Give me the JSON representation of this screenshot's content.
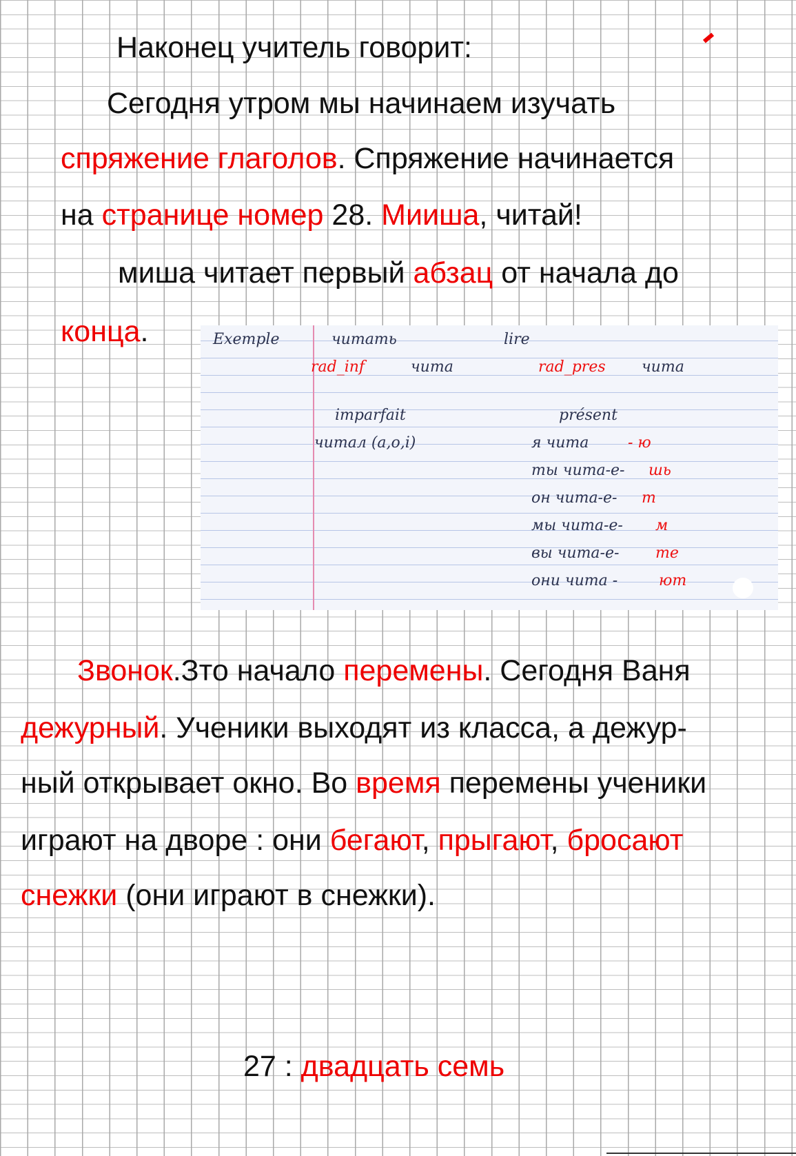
{
  "lines": [
    [
      {
        "text": "Наконец учитель говорит:"
      }
    ],
    [
      {
        "text": "Сегодня утром мы начинаем изучать"
      }
    ],
    [
      {
        "text": "спряжение глаголов",
        "highlight": true
      },
      {
        "text": ". Спряжение начинается"
      }
    ],
    [
      {
        "text": "на "
      },
      {
        "text": "странице номер",
        "highlight": true
      },
      {
        "text": " 28. "
      },
      {
        "text": "Мииша",
        "highlight": true
      },
      {
        "text": ", читай!"
      }
    ],
    [
      {
        "text": "миша читает первый "
      },
      {
        "text": "абзац",
        "highlight": true
      },
      {
        "text": " от начала до"
      }
    ],
    [
      {
        "text": "конца",
        "highlight": true
      },
      {
        "text": "."
      }
    ],
    [
      {
        "text": "Звонок",
        "highlight": true
      },
      {
        "text": ".Зто начало "
      },
      {
        "text": "перемены",
        "highlight": true
      },
      {
        "text": ". Сегодня Ваня"
      }
    ],
    [
      {
        "text": "дежурный",
        "highlight": true
      },
      {
        "text": ". Ученики выходят из класса, а дежур-"
      }
    ],
    [
      {
        "text": "ный открывает окно. Во "
      },
      {
        "text": "время",
        "highlight": true
      },
      {
        "text": " перемены ученики"
      }
    ],
    [
      {
        "text": "играют на дворе : они "
      },
      {
        "text": "бегают",
        "highlight": true
      },
      {
        "text": ", "
      },
      {
        "text": "прыгают",
        "highlight": true
      },
      {
        "text": ", "
      },
      {
        "text": "бросают",
        "highlight": true
      }
    ],
    [
      {
        "text": "снежки",
        "highlight": true
      },
      {
        "text": " (они играют в снежки)."
      }
    ],
    [
      {
        "text": "27 : "
      },
      {
        "text": "двадцать семь",
        "highlight": true
      }
    ]
  ],
  "note_card": [
    [
      {
        "text": "Exemple"
      },
      {
        "text": "читать"
      },
      {
        "text": "lire"
      }
    ],
    [
      {
        "text": "rad_inf",
        "highlight": true
      },
      {
        "text": "чита"
      },
      {
        "text": "rad_pres",
        "highlight": true
      },
      {
        "text": "чита"
      }
    ],
    [
      {
        "text": "imparfait"
      },
      {
        "text": "présent"
      }
    ],
    [
      {
        "text": "читал (a,o,i)"
      },
      {
        "text": "я чита"
      },
      {
        "text": "- ю",
        "highlight": true
      }
    ],
    [
      {
        "text": "ты чита-е-"
      },
      {
        "text": "шь",
        "highlight": true
      }
    ],
    [
      {
        "text": "он чита-е-"
      },
      {
        "text": "т",
        "highlight": true
      }
    ],
    [
      {
        "text": "мы чита-е-"
      },
      {
        "text": "м",
        "highlight": true
      }
    ],
    [
      {
        "text": "вы чита-е-"
      },
      {
        "text": "те",
        "highlight": true
      }
    ],
    [
      {
        "text": "они чита -"
      },
      {
        "text": "ют",
        "highlight": true
      }
    ]
  ]
}
